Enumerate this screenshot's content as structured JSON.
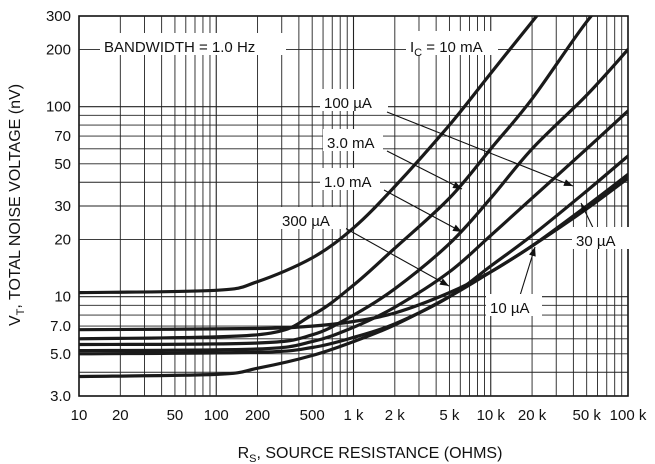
{
  "chart_data": {
    "type": "line",
    "x_scale": "log",
    "y_scale": "log",
    "xlim": [
      10,
      100000
    ],
    "ylim": [
      3,
      300
    ],
    "grid": true,
    "xlabel_main": "R",
    "xlabel_sub": "S",
    "xlabel_rest": ", SOURCE RESISTANCE (OHMS)",
    "ylabel_main": "V",
    "ylabel_sub": "T",
    "ylabel_rest": ", TOTAL NOISE VOLTAGE (nV)",
    "x_ticks": [
      {
        "value": 10,
        "label": "10"
      },
      {
        "value": 20,
        "label": "20"
      },
      {
        "value": 50,
        "label": "50"
      },
      {
        "value": 100,
        "label": "100"
      },
      {
        "value": 200,
        "label": "200"
      },
      {
        "value": 500,
        "label": "500"
      },
      {
        "value": 1000,
        "label": "1 k"
      },
      {
        "value": 2000,
        "label": "2 k"
      },
      {
        "value": 5000,
        "label": "5 k"
      },
      {
        "value": 10000,
        "label": "10 k"
      },
      {
        "value": 20000,
        "label": "20 k"
      },
      {
        "value": 50000,
        "label": "50 k"
      },
      {
        "value": 100000,
        "label": "100 k"
      }
    ],
    "y_ticks": [
      {
        "value": 3,
        "label": "3.0"
      },
      {
        "value": 5,
        "label": "5.0"
      },
      {
        "value": 7,
        "label": "7.0"
      },
      {
        "value": 10,
        "label": "10"
      },
      {
        "value": 20,
        "label": "20"
      },
      {
        "value": 30,
        "label": "30"
      },
      {
        "value": 50,
        "label": "50"
      },
      {
        "value": 70,
        "label": "70"
      },
      {
        "value": 100,
        "label": "100"
      },
      {
        "value": 200,
        "label": "200"
      },
      {
        "value": 300,
        "label": "300"
      }
    ],
    "annotation": "BANDWIDTH = 1.0 Hz",
    "series": [
      {
        "name": "10 mA",
        "x": [
          10,
          100,
          200,
          500,
          1000,
          2000,
          5000,
          10000,
          20000,
          30000
        ],
        "y": [
          10.5,
          10.8,
          12,
          16,
          23,
          38,
          80,
          150,
          280,
          400
        ]
      },
      {
        "name": "3.0 mA",
        "x": [
          10,
          200,
          500,
          1000,
          2000,
          5000,
          10000,
          20000,
          50000,
          100000
        ],
        "y": [
          6.0,
          6.3,
          8.0,
          11.5,
          18,
          33,
          60,
          110,
          280,
          500
        ]
      },
      {
        "name": "1.0 mA",
        "x": [
          10,
          200,
          500,
          1000,
          2000,
          5000,
          10000,
          20000,
          50000,
          100000
        ],
        "y": [
          5.6,
          5.7,
          6.3,
          8.0,
          11,
          19,
          33,
          60,
          115,
          200
        ]
      },
      {
        "name": "300 µA",
        "x": [
          10,
          200,
          500,
          1000,
          2000,
          5000,
          10000,
          20000,
          50000,
          100000
        ],
        "y": [
          5.2,
          5.3,
          5.8,
          6.9,
          8.8,
          13.5,
          21,
          33,
          60,
          95
        ]
      },
      {
        "name": "100 µA",
        "x": [
          10,
          200,
          500,
          1000,
          2000,
          5000,
          10000,
          20000,
          50000,
          100000
        ],
        "y": [
          5.0,
          5.1,
          5.4,
          6.1,
          7.2,
          10,
          14.5,
          21,
          36,
          55
        ]
      },
      {
        "name": "30 µA",
        "x": [
          10,
          200,
          500,
          1000,
          2000,
          5000,
          10000,
          20000,
          50000,
          100000
        ],
        "y": [
          6.7,
          6.8,
          7.0,
          7.4,
          8.2,
          10.5,
          13.5,
          18.5,
          29,
          42
        ]
      },
      {
        "name": "10 µA",
        "x": [
          10,
          100,
          200,
          500,
          1000,
          2000,
          5000,
          10000,
          20000,
          50000,
          100000
        ],
        "y": [
          3.8,
          3.9,
          4.2,
          4.9,
          5.8,
          7.1,
          10,
          13.5,
          18.5,
          30,
          44
        ]
      }
    ],
    "labels": [
      {
        "id": "ic10",
        "main": "I",
        "sub": "C",
        "rest": " = 10 mA"
      },
      {
        "id": "l100u",
        "text": "100 µA"
      },
      {
        "id": "l3m",
        "text": "3.0 mA"
      },
      {
        "id": "l1m",
        "text": "1.0 mA"
      },
      {
        "id": "l300u",
        "text": "300 µA"
      },
      {
        "id": "l30u",
        "text": "30 µA"
      },
      {
        "id": "l10u",
        "text": "10 µA"
      }
    ]
  }
}
